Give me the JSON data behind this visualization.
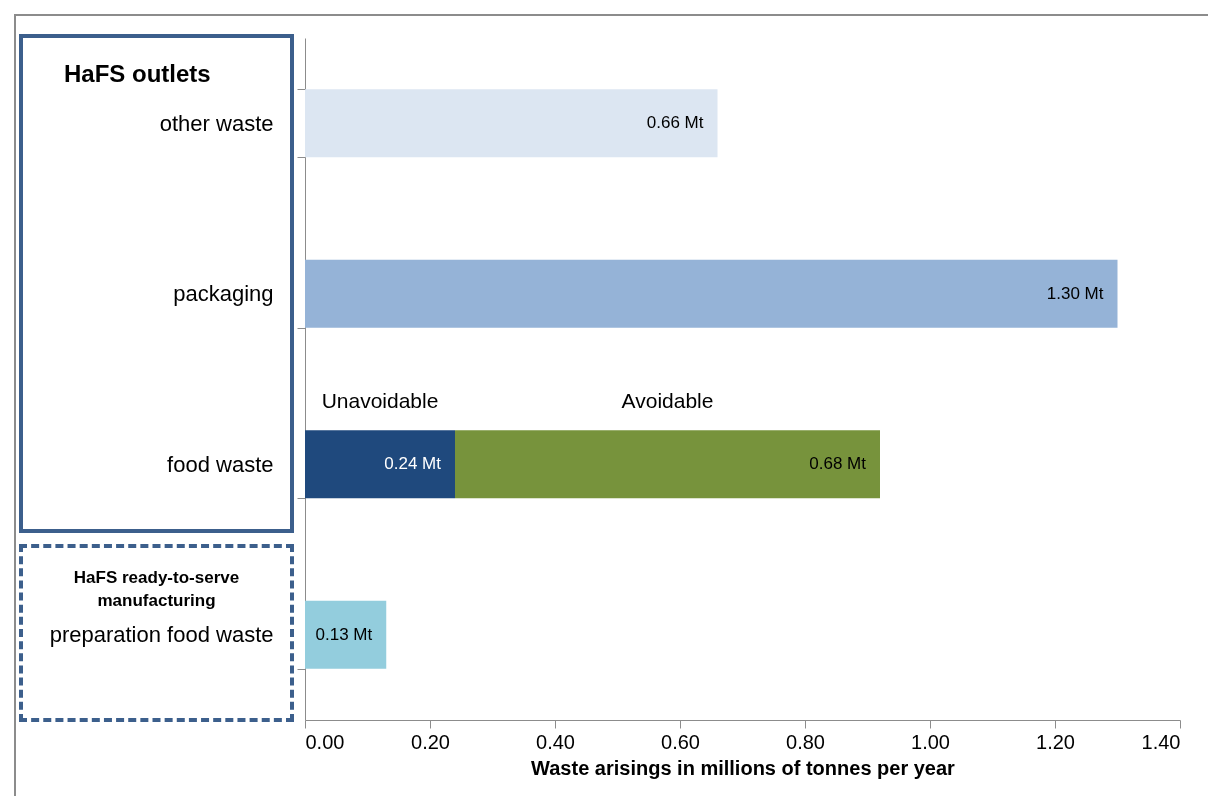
{
  "chart_data": {
    "type": "bar",
    "orientation": "horizontal",
    "stacked": true,
    "xlabel": "Waste arisings in millions of tonnes per year",
    "categories": [
      "other waste",
      "packaging",
      "food waste",
      "preparation food waste"
    ],
    "series": [
      {
        "colors": [
          "#dce6f2",
          "#95b3d7",
          null,
          "#93cddd"
        ],
        "values": [
          0.66,
          1.3,
          null,
          0.13
        ],
        "value_labels": [
          "0.66 Mt",
          "1.30 Mt",
          null,
          "0.13 Mt"
        ]
      },
      {
        "name": "Unavoidable",
        "color": "#1f497d",
        "values": [
          null,
          null,
          0.24,
          null
        ],
        "value_labels": [
          null,
          null,
          "0.24 Mt",
          null
        ]
      },
      {
        "name": "Avoidable",
        "color": "#77933c",
        "values": [
          null,
          null,
          0.68,
          null
        ],
        "value_labels": [
          null,
          null,
          "0.68 Mt",
          null
        ]
      }
    ],
    "xlim": [
      0,
      1.4
    ],
    "xticks": [
      {
        "value": 0,
        "label": "0.00"
      },
      {
        "value": 0.2,
        "label": "0.20"
      },
      {
        "value": 0.4,
        "label": "0.40"
      },
      {
        "value": 0.6,
        "label": "0.60"
      },
      {
        "value": 0.8,
        "label": "0.80"
      },
      {
        "value": 1.0,
        "label": "1.00"
      },
      {
        "value": 1.2,
        "label": "1.20"
      },
      {
        "value": 1.4,
        "label": "1.40"
      }
    ],
    "annotations": [
      "HaFS outlets",
      "HaFS ready-to-serve manufacturing"
    ]
  }
}
